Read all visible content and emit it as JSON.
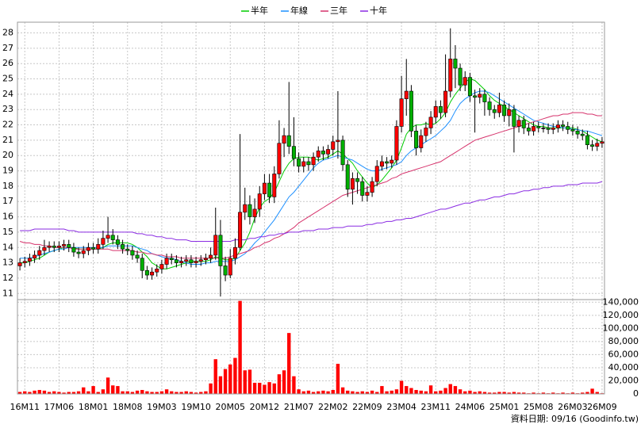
{
  "chart_data": {
    "type": "candlestick",
    "legend_position": "top",
    "grid": true,
    "up_color": "#ff0000",
    "down_color": "#00b000",
    "categories": [
      null,
      "16M11",
      null,
      null,
      null,
      null,
      null,
      null,
      "17M06",
      null,
      null,
      null,
      null,
      null,
      null,
      "18M01",
      null,
      null,
      null,
      null,
      null,
      null,
      "18M08",
      null,
      null,
      null,
      null,
      null,
      null,
      "19M03",
      null,
      null,
      null,
      null,
      null,
      null,
      "19M10",
      null,
      null,
      null,
      null,
      null,
      null,
      "20M05",
      null,
      null,
      null,
      null,
      null,
      null,
      "20M12",
      null,
      null,
      null,
      null,
      null,
      null,
      "21M07",
      null,
      null,
      null,
      null,
      null,
      null,
      "22M02",
      null,
      null,
      null,
      null,
      null,
      null,
      "22M09",
      null,
      null,
      null,
      null,
      null,
      null,
      "23M04",
      null,
      null,
      null,
      null,
      null,
      null,
      "23M11",
      null,
      null,
      null,
      null,
      null,
      null,
      "24M06",
      null,
      null,
      null,
      null,
      null,
      null,
      "25M01",
      null,
      null,
      null,
      null,
      null,
      null,
      "25M08",
      null,
      null,
      null,
      null,
      null,
      null,
      "26M03",
      null,
      null,
      null,
      null,
      null,
      "26M09"
    ],
    "open": [
      12.8,
      13.0,
      13.1,
      13.3,
      13.5,
      13.8,
      14.0,
      14.1,
      14.0,
      14.1,
      14.2,
      14.0,
      13.7,
      13.6,
      13.8,
      14.0,
      13.9,
      14.2,
      14.6,
      14.8,
      14.5,
      14.2,
      13.9,
      13.8,
      13.5,
      13.3,
      12.5,
      12.2,
      12.4,
      12.6,
      12.9,
      13.3,
      13.2,
      13.0,
      13.1,
      13.2,
      13.0,
      13.1,
      13.2,
      13.3,
      13.5,
      14.8,
      12.8,
      12.2,
      13.3,
      14.0,
      16.3,
      16.8,
      16.0,
      16.5,
      17.5,
      18.2,
      17.3,
      18.8,
      20.8,
      21.3,
      20.6,
      19.8,
      19.3,
      19.6,
      19.4,
      19.9,
      20.3,
      20.1,
      20.4,
      20.9,
      21.0,
      19.4,
      17.8,
      18.5,
      18.3,
      17.4,
      17.6,
      18.3,
      19.3,
      19.6,
      19.5,
      19.7,
      21.9,
      23.7,
      24.2,
      21.6,
      20.5,
      21.3,
      21.8,
      22.5,
      23.2,
      22.8,
      24.2,
      26.3,
      25.7,
      24.6,
      25.1,
      23.9,
      23.8,
      24.0,
      23.5,
      23.0,
      22.8,
      23.3,
      22.6,
      23.0,
      21.9,
      22.3,
      21.8,
      21.6,
      21.9,
      21.8,
      21.8,
      21.7,
      21.8,
      22.0,
      21.9,
      21.7,
      21.6,
      21.4,
      21.3,
      20.7,
      20.6,
      20.8
    ],
    "high": [
      13.3,
      13.4,
      13.6,
      13.8,
      14.1,
      14.5,
      14.4,
      14.4,
      14.4,
      14.5,
      14.5,
      14.3,
      14.0,
      14.1,
      14.3,
      14.3,
      14.6,
      15.1,
      16.0,
      15.2,
      14.8,
      14.5,
      14.2,
      14.1,
      13.8,
      13.6,
      12.8,
      12.7,
      12.9,
      13.2,
      13.6,
      13.6,
      13.5,
      13.4,
      13.5,
      13.5,
      13.4,
      13.5,
      13.6,
      14.0,
      16.6,
      15.8,
      13.4,
      13.9,
      14.6,
      21.4,
      17.9,
      17.4,
      17.2,
      18.0,
      18.8,
      18.8,
      19.3,
      22.3,
      21.8,
      24.8,
      22.5,
      20.2,
      19.9,
      19.9,
      20.2,
      20.6,
      20.6,
      20.7,
      21.3,
      24.2,
      21.3,
      19.7,
      18.9,
      18.9,
      18.6,
      18.0,
      18.6,
      19.7,
      20.0,
      19.9,
      20.0,
      22.3,
      25.2,
      26.3,
      24.6,
      22.0,
      21.7,
      22.2,
      22.9,
      23.6,
      23.6,
      26.6,
      28.3,
      27.2,
      26.0,
      25.5,
      25.4,
      24.3,
      24.4,
      24.3,
      23.8,
      23.3,
      24.1,
      23.6,
      23.4,
      23.3,
      22.6,
      22.6,
      22.1,
      22.2,
      22.2,
      22.1,
      22.1,
      22.1,
      22.3,
      22.3,
      22.2,
      22.0,
      21.9,
      21.7,
      21.6,
      21.0,
      21.1,
      21.2
    ],
    "low": [
      12.5,
      12.7,
      12.8,
      13.0,
      13.2,
      13.5,
      13.7,
      13.7,
      13.7,
      13.8,
      13.7,
      13.4,
      13.3,
      13.3,
      13.5,
      13.6,
      13.6,
      13.9,
      14.3,
      14.2,
      13.9,
      13.6,
      13.5,
      13.2,
      13.0,
      12.0,
      11.9,
      11.9,
      12.1,
      12.3,
      12.6,
      12.9,
      12.7,
      12.7,
      12.8,
      12.7,
      12.7,
      12.8,
      12.9,
      13.0,
      13.2,
      10.8,
      11.8,
      12.0,
      12.9,
      13.8,
      15.8,
      15.5,
      15.6,
      16.0,
      17.1,
      16.9,
      16.9,
      18.5,
      19.9,
      20.1,
      19.3,
      18.9,
      18.9,
      19.0,
      19.0,
      19.6,
      19.7,
      19.8,
      20.0,
      19.8,
      19.0,
      17.3,
      16.8,
      17.5,
      17.0,
      17.0,
      17.3,
      18.0,
      19.0,
      19.1,
      19.2,
      19.4,
      21.5,
      22.6,
      21.2,
      20.0,
      20.2,
      20.9,
      21.4,
      22.1,
      22.4,
      22.5,
      23.8,
      24.4,
      24.2,
      24.2,
      23.5,
      21.5,
      23.4,
      22.6,
      22.6,
      22.4,
      22.5,
      22.2,
      21.9,
      20.2,
      21.5,
      21.4,
      21.3,
      21.3,
      21.5,
      21.5,
      21.4,
      21.4,
      21.5,
      21.6,
      21.4,
      21.3,
      21.1,
      21.0,
      20.4,
      20.3,
      20.3,
      20.5
    ],
    "close": [
      13.0,
      13.1,
      13.3,
      13.5,
      13.8,
      14.0,
      14.1,
      14.0,
      14.1,
      14.2,
      14.0,
      13.7,
      13.6,
      13.8,
      14.0,
      13.9,
      14.2,
      14.6,
      14.8,
      14.5,
      14.2,
      13.9,
      13.8,
      13.5,
      13.3,
      12.5,
      12.2,
      12.4,
      12.6,
      12.9,
      13.3,
      13.2,
      13.0,
      13.1,
      13.2,
      13.0,
      13.1,
      13.2,
      13.3,
      13.5,
      14.8,
      12.8,
      12.2,
      13.3,
      14.0,
      16.3,
      16.8,
      16.0,
      16.5,
      17.5,
      18.2,
      17.3,
      18.8,
      20.8,
      21.3,
      20.6,
      19.8,
      19.3,
      19.6,
      19.4,
      19.9,
      20.3,
      20.1,
      20.4,
      20.9,
      21.0,
      19.4,
      17.8,
      18.5,
      18.3,
      17.4,
      17.6,
      18.3,
      19.3,
      19.6,
      19.5,
      19.7,
      21.9,
      23.7,
      24.2,
      21.6,
      20.5,
      21.3,
      21.8,
      22.5,
      23.2,
      22.8,
      24.2,
      26.3,
      25.7,
      24.6,
      25.1,
      23.9,
      23.8,
      24.0,
      23.5,
      23.0,
      22.8,
      23.3,
      22.6,
      23.0,
      21.9,
      22.3,
      21.8,
      21.6,
      21.9,
      21.8,
      21.8,
      21.7,
      21.8,
      22.0,
      21.9,
      21.7,
      21.6,
      21.4,
      21.3,
      20.7,
      20.6,
      20.8,
      20.9
    ],
    "series": [
      {
        "name": "半年",
        "color": "#00cc00",
        "values": [
          13.0,
          13.0,
          13.1,
          13.2,
          13.3,
          13.5,
          13.7,
          13.8,
          13.9,
          14.0,
          14.0,
          14.0,
          13.9,
          13.9,
          13.9,
          13.9,
          13.9,
          14.0,
          14.2,
          14.3,
          14.3,
          14.3,
          14.3,
          14.2,
          14.0,
          13.7,
          13.4,
          13.0,
          12.8,
          12.6,
          12.6,
          12.7,
          12.8,
          12.9,
          13.0,
          13.1,
          13.1,
          13.1,
          13.1,
          13.2,
          13.4,
          13.3,
          13.2,
          13.2,
          13.3,
          13.8,
          14.3,
          15.0,
          15.9,
          16.6,
          17.0,
          17.2,
          17.6,
          18.3,
          19.0,
          19.5,
          19.8,
          19.9,
          19.9,
          19.9,
          19.8,
          19.7,
          19.8,
          19.9,
          20.1,
          20.3,
          20.1,
          19.8,
          19.5,
          19.0,
          18.6,
          18.2,
          17.9,
          18.1,
          18.4,
          18.8,
          19.2,
          19.7,
          20.5,
          21.4,
          21.8,
          22.0,
          22.0,
          22.1,
          22.0,
          22.1,
          22.4,
          22.8,
          23.5,
          24.0,
          24.4,
          24.8,
          25.0,
          24.9,
          24.6,
          24.3,
          23.9,
          23.6,
          23.4,
          23.2,
          23.0,
          22.8,
          22.6,
          22.4,
          22.2,
          22.0,
          21.9,
          21.9,
          21.8,
          21.8,
          21.8,
          21.8,
          21.8,
          21.8,
          21.7,
          21.6,
          21.4,
          21.2,
          21.0,
          20.9
        ]
      },
      {
        "name": "年線",
        "color": "#1e90ff",
        "values": [
          13.3,
          13.3,
          13.3,
          13.4,
          13.5,
          13.6,
          13.7,
          13.8,
          13.9,
          13.9,
          14.0,
          14.0,
          14.0,
          14.0,
          14.0,
          14.0,
          14.0,
          14.0,
          14.1,
          14.1,
          14.1,
          14.1,
          14.1,
          14.1,
          14.0,
          13.9,
          13.8,
          13.6,
          13.5,
          13.4,
          13.3,
          13.3,
          13.2,
          13.1,
          13.0,
          12.9,
          12.9,
          12.9,
          13.0,
          13.0,
          13.1,
          13.1,
          13.1,
          13.1,
          13.2,
          13.4,
          13.6,
          13.9,
          14.3,
          14.6,
          15.0,
          15.4,
          15.8,
          16.3,
          16.8,
          17.3,
          17.6,
          18.0,
          18.4,
          18.8,
          19.2,
          19.5,
          19.7,
          19.8,
          19.9,
          20.0,
          19.9,
          19.8,
          19.7,
          19.5,
          19.3,
          19.1,
          19.0,
          19.0,
          19.1,
          19.2,
          19.3,
          19.4,
          19.6,
          20.0,
          20.3,
          20.5,
          20.7,
          20.9,
          21.1,
          21.3,
          21.6,
          21.9,
          22.3,
          22.9,
          23.4,
          23.7,
          23.9,
          24.1,
          24.2,
          24.2,
          24.1,
          23.9,
          23.7,
          23.5,
          23.3,
          23.1,
          22.9,
          22.7,
          22.5,
          22.3,
          22.2,
          22.1,
          22.0,
          21.9,
          21.9,
          21.8,
          21.8,
          21.7,
          21.7,
          21.6,
          21.6,
          21.5,
          21.4,
          21.3
        ]
      },
      {
        "name": "三年",
        "color": "#d6336c",
        "values": [
          14.4,
          14.3,
          14.3,
          14.2,
          14.2,
          14.1,
          14.1,
          14.0,
          14.0,
          14.0,
          14.0,
          13.9,
          13.9,
          13.9,
          13.9,
          13.9,
          13.9,
          13.9,
          13.9,
          13.8,
          13.8,
          13.8,
          13.8,
          13.8,
          13.7,
          13.7,
          13.6,
          13.6,
          13.5,
          13.5,
          13.4,
          13.4,
          13.4,
          13.3,
          13.3,
          13.3,
          13.3,
          13.3,
          13.3,
          13.3,
          13.3,
          13.3,
          13.3,
          13.4,
          13.5,
          13.6,
          13.7,
          13.8,
          14.0,
          14.1,
          14.3,
          14.4,
          14.6,
          14.7,
          14.9,
          15.1,
          15.3,
          15.6,
          15.8,
          16.0,
          16.2,
          16.4,
          16.6,
          16.8,
          17.0,
          17.2,
          17.4,
          17.5,
          17.6,
          17.7,
          17.8,
          17.9,
          18.0,
          18.1,
          18.2,
          18.3,
          18.5,
          18.6,
          18.8,
          18.9,
          19.0,
          19.1,
          19.2,
          19.3,
          19.4,
          19.5,
          19.6,
          19.8,
          20.0,
          20.2,
          20.4,
          20.6,
          20.8,
          21.0,
          21.1,
          21.2,
          21.3,
          21.4,
          21.5,
          21.6,
          21.7,
          21.8,
          21.9,
          22.0,
          22.1,
          22.2,
          22.3,
          22.4,
          22.5,
          22.6,
          22.6,
          22.7,
          22.7,
          22.8,
          22.8,
          22.8,
          22.7,
          22.7,
          22.6,
          22.6
        ]
      },
      {
        "name": "十年",
        "color": "#8a2be2",
        "values": [
          15.1,
          15.1,
          15.1,
          15.2,
          15.2,
          15.2,
          15.2,
          15.2,
          15.2,
          15.2,
          15.1,
          15.1,
          15.0,
          15.0,
          15.0,
          15.0,
          15.0,
          15.0,
          15.0,
          15.0,
          15.0,
          15.0,
          15.0,
          15.0,
          14.9,
          14.9,
          14.8,
          14.8,
          14.7,
          14.7,
          14.6,
          14.6,
          14.5,
          14.5,
          14.5,
          14.4,
          14.4,
          14.4,
          14.4,
          14.4,
          14.4,
          14.4,
          14.4,
          14.4,
          14.5,
          14.5,
          14.5,
          14.6,
          14.6,
          14.7,
          14.7,
          14.8,
          14.8,
          14.9,
          14.9,
          15.0,
          15.0,
          15.0,
          15.1,
          15.1,
          15.1,
          15.2,
          15.2,
          15.2,
          15.3,
          15.3,
          15.3,
          15.4,
          15.4,
          15.4,
          15.4,
          15.5,
          15.5,
          15.6,
          15.6,
          15.7,
          15.7,
          15.8,
          15.8,
          15.9,
          15.9,
          16.0,
          16.1,
          16.2,
          16.3,
          16.4,
          16.5,
          16.5,
          16.6,
          16.7,
          16.8,
          16.9,
          16.9,
          17.0,
          17.1,
          17.1,
          17.2,
          17.3,
          17.3,
          17.4,
          17.5,
          17.5,
          17.6,
          17.7,
          17.7,
          17.8,
          17.8,
          17.9,
          17.9,
          18.0,
          18.0,
          18.0,
          18.1,
          18.1,
          18.1,
          18.2,
          18.2,
          18.2,
          18.2,
          18.3
        ]
      }
    ],
    "ylim": [
      10.6,
      28.7
    ],
    "yticks": [
      11,
      12,
      13,
      14,
      15,
      16,
      17,
      18,
      19,
      20,
      21,
      22,
      23,
      24,
      25,
      26,
      27,
      28
    ],
    "volume": {
      "color": "#ff0000",
      "values": [
        3000,
        4000,
        3000,
        5000,
        6000,
        5000,
        3000,
        4000,
        3000,
        2000,
        3000,
        3000,
        4000,
        10000,
        4000,
        12000,
        3000,
        7000,
        25000,
        13000,
        12000,
        4000,
        4000,
        3000,
        5000,
        6000,
        4000,
        3000,
        3000,
        4000,
        7000,
        4000,
        3000,
        3000,
        4000,
        3000,
        2000,
        3000,
        4000,
        16000,
        53000,
        27000,
        38000,
        45000,
        55000,
        142000,
        36000,
        37000,
        17000,
        17000,
        14000,
        18000,
        16000,
        30000,
        36000,
        93000,
        27000,
        7000,
        4000,
        5000,
        3000,
        4000,
        5000,
        4000,
        6000,
        46000,
        10000,
        5000,
        4000,
        3000,
        4000,
        3000,
        5000,
        3000,
        12000,
        4000,
        5000,
        7000,
        20000,
        12000,
        9000,
        6000,
        5000,
        4000,
        13000,
        4000,
        5000,
        9000,
        15000,
        12000,
        7000,
        4000,
        5000,
        3000,
        4000,
        3000,
        2000,
        2000,
        3000,
        3000,
        2000,
        3000,
        2000,
        2000,
        1000,
        2000,
        1000,
        2000,
        1000,
        2000,
        1000,
        2000,
        1000,
        2000,
        1000,
        2000,
        3000,
        8000,
        3000,
        1000
      ],
      "ylim": [
        0,
        144000
      ],
      "yticks": [
        0,
        {
          "value": 20000,
          "label": "20,000"
        },
        {
          "value": 40000,
          "label": "40,000"
        },
        {
          "value": 60000,
          "label": "60,000"
        },
        {
          "value": 80000,
          "label": "80,000"
        },
        {
          "value": 100000,
          "label": "100,000"
        },
        {
          "value": 120000,
          "label": "120,000"
        },
        {
          "value": 140000,
          "label": "140,000"
        }
      ]
    },
    "note": "資料日期: 09/16 (Goodinfo.tw)"
  }
}
